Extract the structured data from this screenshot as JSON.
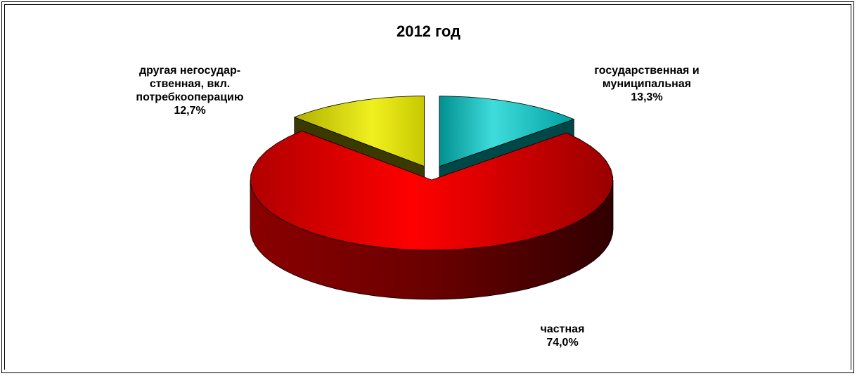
{
  "chart_data": {
    "type": "pie",
    "title": "2012 год",
    "slices": [
      {
        "label": "частная",
        "pct_label": "74,0%",
        "value": 74.0,
        "color": "#e00000"
      },
      {
        "label": "другая негосудар-\nственная, вкл.\nпотребкооперацию",
        "pct_label": "12,7%",
        "value": 12.7,
        "color": "#e8e800"
      },
      {
        "label": "государственная и\nмуниципальная",
        "pct_label": "13,3%",
        "value": 13.3,
        "color": "#00b8b8"
      }
    ]
  }
}
